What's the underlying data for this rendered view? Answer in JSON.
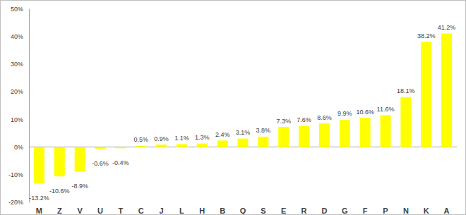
{
  "chart_data": {
    "type": "bar",
    "categories": [
      "M",
      "Z",
      "V",
      "U",
      "T",
      "C",
      "J",
      "L",
      "H",
      "B",
      "Q",
      "S",
      "E",
      "R",
      "D",
      "G",
      "F",
      "P",
      "N",
      "K",
      "A"
    ],
    "values": [
      -13.2,
      -10.6,
      -8.9,
      -0.6,
      -0.4,
      0.5,
      0.9,
      1.1,
      1.3,
      2.4,
      3.1,
      3.8,
      7.3,
      7.6,
      8.6,
      9.9,
      10.6,
      11.6,
      18.1,
      38.2,
      41.2
    ],
    "value_labels": [
      "-13.2%",
      "-10.6%",
      "-8.9%",
      "-0.6%",
      "-0.4%",
      "0.5%",
      "0.9%",
      "1.1%",
      "1.3%",
      "2.4%",
      "3.1%",
      "3.8%",
      "7.3%",
      "7.6%",
      "8.6%",
      "9.9%",
      "10.6%",
      "11.6%",
      "18.1%",
      "38.2%",
      "41.2%"
    ],
    "color": "#ffff00",
    "ylim": [
      -20,
      50
    ],
    "yticks": [
      {
        "value": -20,
        "label": "-20%"
      },
      {
        "value": -10,
        "label": "-10%"
      },
      {
        "value": 0,
        "label": "0%"
      },
      {
        "value": 10,
        "label": "10%"
      },
      {
        "value": 20,
        "label": "20%"
      },
      {
        "value": 30,
        "label": "30%"
      },
      {
        "value": 40,
        "label": "40%"
      },
      {
        "value": 50,
        "label": "50%"
      }
    ],
    "grid": false,
    "data_labels": true
  }
}
